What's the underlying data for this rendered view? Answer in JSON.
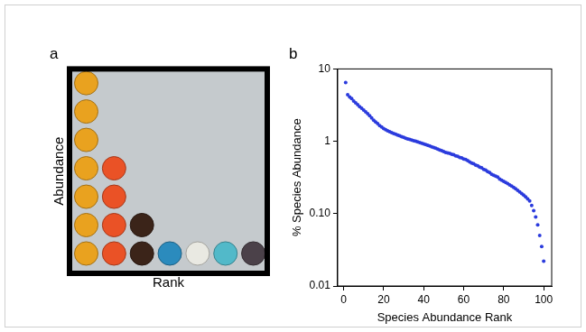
{
  "chart_data": [
    {
      "type": "dot",
      "title": "a",
      "x_label": "Rank",
      "y_label": "Abundance",
      "x": [
        1,
        2,
        3,
        4,
        5,
        6,
        7
      ],
      "values": [
        7,
        4,
        2,
        1,
        1,
        1,
        1
      ],
      "colors": [
        "#e9a21f",
        "#ea5226",
        "#3b2419",
        "#2b8bbd",
        "#e9e9e2",
        "#52b9c9",
        "#4b4149"
      ],
      "xlim": [
        0.4,
        7.5
      ],
      "ylim": [
        0.3,
        7.5
      ],
      "tick_labels": false,
      "grid": false,
      "marker": "circle"
    },
    {
      "type": "scatter",
      "title": "b",
      "x_label": "Species Abundance Rank",
      "y_label": "% Species Abundance",
      "x": [
        1,
        2,
        3,
        4,
        5,
        6,
        7,
        8,
        9,
        10,
        11,
        12,
        13,
        14,
        15,
        16,
        17,
        18,
        19,
        20,
        21,
        22,
        23,
        24,
        25,
        26,
        27,
        28,
        29,
        30,
        31,
        32,
        33,
        34,
        35,
        36,
        37,
        38,
        39,
        40,
        41,
        42,
        43,
        44,
        45,
        46,
        47,
        48,
        49,
        50,
        51,
        52,
        53,
        54,
        55,
        56,
        57,
        58,
        59,
        60,
        61,
        62,
        63,
        64,
        65,
        66,
        67,
        68,
        69,
        70,
        71,
        72,
        73,
        74,
        75,
        76,
        77,
        78,
        79,
        80,
        81,
        82,
        83,
        84,
        85,
        86,
        87,
        88,
        89,
        90,
        91,
        92,
        93,
        94,
        95,
        96,
        97,
        98,
        99,
        100
      ],
      "values": [
        6.5,
        4.4,
        4.1,
        3.9,
        3.6,
        3.4,
        3.2,
        3.0,
        2.85,
        2.7,
        2.55,
        2.4,
        2.25,
        2.1,
        1.95,
        1.85,
        1.75,
        1.65,
        1.58,
        1.5,
        1.45,
        1.4,
        1.36,
        1.32,
        1.28,
        1.25,
        1.22,
        1.19,
        1.16,
        1.13,
        1.1,
        1.08,
        1.06,
        1.04,
        1.02,
        1.0,
        0.98,
        0.96,
        0.94,
        0.92,
        0.9,
        0.88,
        0.86,
        0.84,
        0.82,
        0.8,
        0.78,
        0.76,
        0.74,
        0.72,
        0.7,
        0.69,
        0.68,
        0.66,
        0.65,
        0.63,
        0.62,
        0.6,
        0.59,
        0.57,
        0.56,
        0.54,
        0.52,
        0.5,
        0.49,
        0.47,
        0.46,
        0.44,
        0.43,
        0.41,
        0.4,
        0.38,
        0.37,
        0.35,
        0.34,
        0.33,
        0.32,
        0.3,
        0.29,
        0.28,
        0.27,
        0.26,
        0.25,
        0.24,
        0.23,
        0.22,
        0.21,
        0.2,
        0.19,
        0.18,
        0.17,
        0.16,
        0.15,
        0.13,
        0.11,
        0.09,
        0.07,
        0.05,
        0.035,
        0.022
      ],
      "color": "#2b3bdd",
      "marker": "circle",
      "log": "y",
      "xlim": [
        -3,
        104
      ],
      "xticks": [
        0,
        20,
        40,
        60,
        80,
        100
      ],
      "ylim": [
        0.01,
        10
      ],
      "yticks": [
        0.01,
        {
          "value": 0.1,
          "label": "0.10"
        },
        1,
        10
      ],
      "grid": false
    }
  ]
}
